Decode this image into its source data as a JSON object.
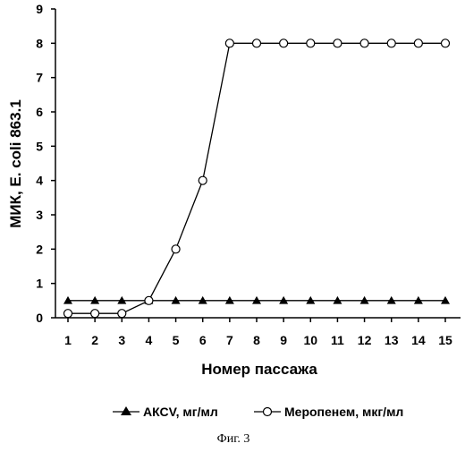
{
  "chart_data": {
    "type": "line",
    "xlabel": "Номер пассажа",
    "ylabel": "МИК, E. coli 863.1",
    "ylim": [
      0,
      9
    ],
    "xlim": [
      1,
      15
    ],
    "categories": [
      1,
      2,
      3,
      4,
      5,
      6,
      7,
      8,
      9,
      10,
      11,
      12,
      13,
      14,
      15
    ],
    "yticks": [
      0,
      1,
      2,
      3,
      4,
      5,
      6,
      7,
      8,
      9
    ],
    "series": [
      {
        "name": "АКСV, мг/мл",
        "marker": "filled-triangle",
        "color": "#000000",
        "values": [
          0.5,
          0.5,
          0.5,
          0.5,
          0.5,
          0.5,
          0.5,
          0.5,
          0.5,
          0.5,
          0.5,
          0.5,
          0.5,
          0.5,
          0.5
        ]
      },
      {
        "name": "Меропенем, мкг/мл",
        "marker": "open-circle",
        "color": "#000000",
        "values": [
          0.125,
          0.125,
          0.125,
          0.5,
          2,
          4,
          8,
          8,
          8,
          8,
          8,
          8,
          8,
          8,
          8
        ]
      }
    ],
    "legend_position": "bottom",
    "grid": false
  },
  "caption": "Фиг. 3"
}
